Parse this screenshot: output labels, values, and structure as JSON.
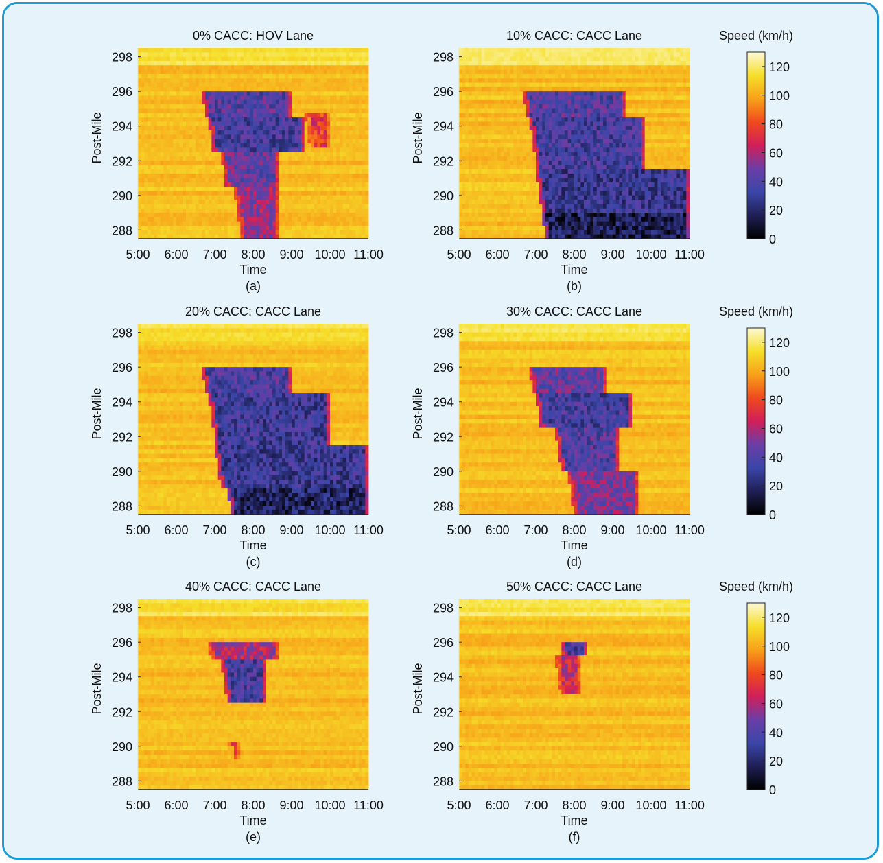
{
  "chart_data": [
    {
      "type": "heatmap",
      "title": "0% CACC: HOV Lane",
      "caption": "(a)",
      "xlabel": "Time",
      "ylabel": "Post-Mile",
      "xticks": [
        "5:00",
        "6:00",
        "7:00",
        "8:00",
        "9:00",
        "10:00",
        "11:00"
      ],
      "yticks": [
        288,
        290,
        292,
        294,
        296,
        298
      ],
      "xlim": [
        "5:00",
        "11:00"
      ],
      "ylim": [
        287.5,
        298.5
      ],
      "value_unit": "km/h",
      "congestion_regions": [
        {
          "from": "6:40",
          "to": "9:00",
          "pm_low": 294.5,
          "pm_high": 296,
          "speed": 40
        },
        {
          "from": "6:50",
          "to": "9:20",
          "pm_low": 292.5,
          "pm_high": 294.5,
          "speed": 35
        },
        {
          "from": "7:10",
          "to": "8:40",
          "pm_low": 290.5,
          "pm_high": 292.5,
          "speed": 45
        },
        {
          "from": "7:30",
          "to": "8:40",
          "pm_low": 287.5,
          "pm_high": 290.5,
          "speed": 55
        },
        {
          "from": "9:20",
          "to": "10:00",
          "pm_low": 292.8,
          "pm_high": 294.8,
          "speed": 75
        }
      ],
      "grid": false
    },
    {
      "type": "heatmap",
      "title": "10% CACC: CACC Lane",
      "caption": "(b)",
      "xlabel": "Time",
      "ylabel": "Post-Mile",
      "xticks": [
        "5:00",
        "6:00",
        "7:00",
        "8:00",
        "9:00",
        "10:00",
        "11:00"
      ],
      "yticks": [
        288,
        290,
        292,
        294,
        296,
        298
      ],
      "xlim": [
        "5:00",
        "11:00"
      ],
      "ylim": [
        287.5,
        298.5
      ],
      "value_unit": "km/h",
      "congestion_regions": [
        {
          "from": "6:40",
          "to": "9:20",
          "pm_low": 294.5,
          "pm_high": 296,
          "speed": 40
        },
        {
          "from": "6:50",
          "to": "9:50",
          "pm_low": 291.5,
          "pm_high": 294.5,
          "speed": 35
        },
        {
          "from": "7:00",
          "to": "11:00",
          "pm_low": 289,
          "pm_high": 291.5,
          "speed": 30
        },
        {
          "from": "7:10",
          "to": "11:00",
          "pm_low": 287.5,
          "pm_high": 289,
          "speed": 15
        }
      ],
      "grid": false
    },
    {
      "type": "heatmap",
      "title": "20% CACC: CACC Lane",
      "caption": "(c)",
      "xlabel": "Time",
      "ylabel": "Post-Mile",
      "xticks": [
        "5:00",
        "6:00",
        "7:00",
        "8:00",
        "9:00",
        "10:00",
        "11:00"
      ],
      "yticks": [
        288,
        290,
        292,
        294,
        296,
        298
      ],
      "xlim": [
        "5:00",
        "11:00"
      ],
      "ylim": [
        287.5,
        298.5
      ],
      "value_unit": "km/h",
      "congestion_regions": [
        {
          "from": "6:40",
          "to": "9:00",
          "pm_low": 294.5,
          "pm_high": 296,
          "speed": 38
        },
        {
          "from": "6:50",
          "to": "10:00",
          "pm_low": 291.5,
          "pm_high": 294.5,
          "speed": 32
        },
        {
          "from": "7:00",
          "to": "11:00",
          "pm_low": 289,
          "pm_high": 291.5,
          "speed": 30
        },
        {
          "from": "7:20",
          "to": "11:00",
          "pm_low": 287.5,
          "pm_high": 289,
          "speed": 18
        }
      ],
      "grid": false
    },
    {
      "type": "heatmap",
      "title": "30% CACC: CACC Lane",
      "caption": "(d)",
      "xlabel": "Time",
      "ylabel": "Post-Mile",
      "xticks": [
        "5:00",
        "6:00",
        "7:00",
        "8:00",
        "9:00",
        "10:00",
        "11:00"
      ],
      "yticks": [
        288,
        290,
        292,
        294,
        296,
        298
      ],
      "xlim": [
        "5:00",
        "11:00"
      ],
      "ylim": [
        287.5,
        298.5
      ],
      "value_unit": "km/h",
      "congestion_regions": [
        {
          "from": "6:50",
          "to": "8:50",
          "pm_low": 294.5,
          "pm_high": 296,
          "speed": 45
        },
        {
          "from": "7:00",
          "to": "9:30",
          "pm_low": 292.5,
          "pm_high": 294.5,
          "speed": 35
        },
        {
          "from": "7:30",
          "to": "9:10",
          "pm_low": 290,
          "pm_high": 292.5,
          "speed": 40
        },
        {
          "from": "7:50",
          "to": "9:40",
          "pm_low": 287.5,
          "pm_high": 290,
          "speed": 50
        }
      ],
      "grid": false
    },
    {
      "type": "heatmap",
      "title": "40% CACC: CACC Lane",
      "caption": "(e)",
      "xlabel": "Time",
      "ylabel": "Post-Mile",
      "xticks": [
        "5:00",
        "6:00",
        "7:00",
        "8:00",
        "9:00",
        "10:00",
        "11:00"
      ],
      "yticks": [
        288,
        290,
        292,
        294,
        296,
        298
      ],
      "xlim": [
        "5:00",
        "11:00"
      ],
      "ylim": [
        287.5,
        298.5
      ],
      "value_unit": "km/h",
      "congestion_regions": [
        {
          "from": "6:50",
          "to": "8:40",
          "pm_low": 295,
          "pm_high": 296,
          "speed": 60
        },
        {
          "from": "7:10",
          "to": "8:20",
          "pm_low": 292.5,
          "pm_high": 295,
          "speed": 35
        },
        {
          "from": "7:20",
          "to": "7:40",
          "pm_low": 289.2,
          "pm_high": 290.3,
          "speed": 85
        }
      ],
      "grid": false
    },
    {
      "type": "heatmap",
      "title": "50% CACC: CACC Lane",
      "caption": "(f)",
      "xlabel": "Time",
      "ylabel": "Post-Mile",
      "xticks": [
        "5:00",
        "6:00",
        "7:00",
        "8:00",
        "9:00",
        "10:00",
        "11:00"
      ],
      "yticks": [
        288,
        290,
        292,
        294,
        296,
        298
      ],
      "xlim": [
        "5:00",
        "11:00"
      ],
      "ylim": [
        287.5,
        298.5
      ],
      "value_unit": "km/h",
      "congestion_regions": [
        {
          "from": "7:40",
          "to": "8:20",
          "pm_low": 295.2,
          "pm_high": 296,
          "speed": 35
        },
        {
          "from": "7:30",
          "to": "8:10",
          "pm_low": 293,
          "pm_high": 295.2,
          "speed": 65
        }
      ],
      "grid": false
    }
  ],
  "colorbar": {
    "label": "Speed (km/h)",
    "ticks": [
      0,
      20,
      40,
      60,
      80,
      100,
      120
    ],
    "range": [
      0,
      130
    ],
    "colors": [
      "#000000",
      "#1f1f55",
      "#3b46a8",
      "#6a3ea6",
      "#d11f5a",
      "#f04a1e",
      "#f7a119",
      "#f6df2a",
      "#fdf9d8"
    ],
    "free_flow_speed": 105
  },
  "colors": {
    "frame_border": "#1b9bd7",
    "panel_background": "#e6f3fb"
  }
}
